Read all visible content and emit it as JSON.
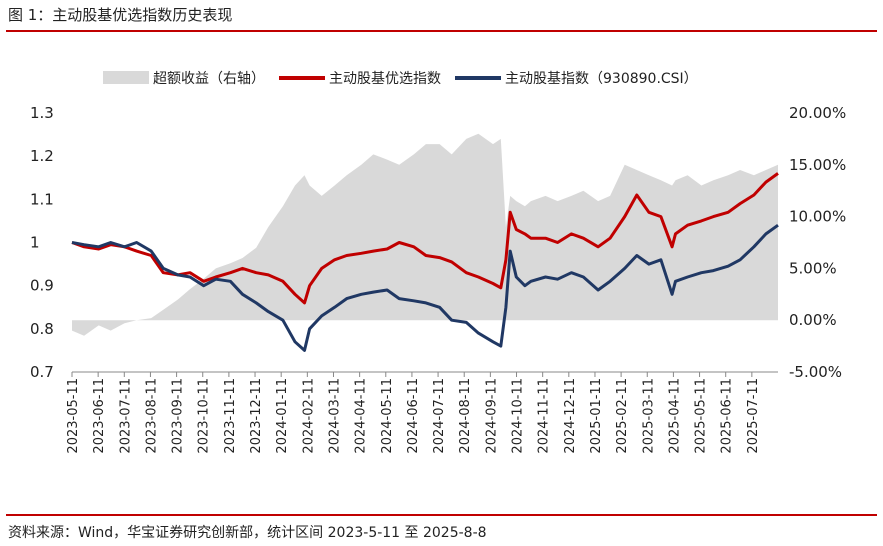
{
  "figure": {
    "title": "图 1：主动股基优选指数历史表现",
    "source": "资料来源：Wind，华宝证券研究创新部，统计区间 2023-5-11 至 2025-8-8"
  },
  "chart_data": {
    "type": "line",
    "title": "",
    "legend_position": "top",
    "grid": false,
    "x_tick_labels": [
      "2023-05-11",
      "2023-06-11",
      "2023-07-11",
      "2023-08-11",
      "2023-09-11",
      "2023-10-11",
      "2023-11-11",
      "2023-12-11",
      "2024-01-11",
      "2024-02-11",
      "2024-03-11",
      "2024-04-11",
      "2024-05-11",
      "2024-06-11",
      "2024-07-11",
      "2024-08-11",
      "2024-09-11",
      "2024-10-11",
      "2024-11-11",
      "2024-12-11",
      "2025-01-11",
      "2025-02-11",
      "2025-03-11",
      "2025-04-11",
      "2025-05-11",
      "2025-06-11",
      "2025-07-11"
    ],
    "y_left": {
      "ylim": [
        0.7,
        1.3
      ],
      "ticks": [
        0.7,
        0.8,
        0.9,
        1,
        1.1,
        1.2,
        1.3
      ],
      "tick_labels": [
        "0.7",
        "0.8",
        "0.9",
        "1",
        "1.1",
        "1.2",
        "1.3"
      ]
    },
    "y_right": {
      "ylim": [
        -0.05,
        0.2
      ],
      "ticks": [
        -0.05,
        0,
        0.05,
        0.1,
        0.15,
        0.2
      ],
      "tick_labels": [
        "-5.00%",
        "0.00%",
        "5.00%",
        "10.00%",
        "15.00%",
        "20.00%"
      ]
    },
    "x": [
      "2023-05-11",
      "2023-05-25",
      "2023-06-11",
      "2023-06-25",
      "2023-07-11",
      "2023-07-25",
      "2023-08-11",
      "2023-08-25",
      "2023-09-11",
      "2023-09-25",
      "2023-10-11",
      "2023-10-25",
      "2023-11-11",
      "2023-11-25",
      "2023-12-11",
      "2023-12-25",
      "2024-01-11",
      "2024-01-25",
      "2024-02-05",
      "2024-02-11",
      "2024-02-25",
      "2024-03-11",
      "2024-03-25",
      "2024-04-11",
      "2024-04-25",
      "2024-05-11",
      "2024-05-25",
      "2024-06-11",
      "2024-06-25",
      "2024-07-11",
      "2024-07-25",
      "2024-08-11",
      "2024-08-25",
      "2024-09-11",
      "2024-09-20",
      "2024-09-26",
      "2024-10-01",
      "2024-10-08",
      "2024-10-18",
      "2024-10-25",
      "2024-11-11",
      "2024-11-25",
      "2024-12-11",
      "2024-12-25",
      "2025-01-11",
      "2025-01-25",
      "2025-02-11",
      "2025-02-25",
      "2025-03-11",
      "2025-03-25",
      "2025-04-07",
      "2025-04-11",
      "2025-04-25",
      "2025-05-11",
      "2025-05-25",
      "2025-06-11",
      "2025-06-25",
      "2025-07-11",
      "2025-07-25",
      "2025-08-08"
    ],
    "series": [
      {
        "name": "超额收益（右轴）",
        "type": "area",
        "axis": "right",
        "color": "#d9d9d9",
        "values": [
          -0.01,
          -0.015,
          -0.005,
          -0.01,
          -0.003,
          0.0,
          0.002,
          0.01,
          0.02,
          0.03,
          0.04,
          0.05,
          0.055,
          0.06,
          0.07,
          0.09,
          0.11,
          0.13,
          0.14,
          0.13,
          0.12,
          0.13,
          0.14,
          0.15,
          0.16,
          0.155,
          0.15,
          0.16,
          0.17,
          0.17,
          0.16,
          0.175,
          0.18,
          0.17,
          0.175,
          0.09,
          0.12,
          0.115,
          0.11,
          0.115,
          0.12,
          0.115,
          0.12,
          0.125,
          0.115,
          0.12,
          0.15,
          0.145,
          0.14,
          0.135,
          0.13,
          0.135,
          0.14,
          0.13,
          0.135,
          0.14,
          0.145,
          0.14,
          0.145,
          0.15
        ]
      },
      {
        "name": "主动股基优选指数",
        "type": "line",
        "axis": "left",
        "color": "#c00000",
        "values": [
          1.0,
          0.99,
          0.985,
          0.995,
          0.99,
          0.98,
          0.97,
          0.93,
          0.925,
          0.93,
          0.91,
          0.92,
          0.93,
          0.94,
          0.93,
          0.925,
          0.91,
          0.88,
          0.86,
          0.9,
          0.94,
          0.96,
          0.97,
          0.975,
          0.98,
          0.985,
          1.0,
          0.99,
          0.97,
          0.965,
          0.955,
          0.93,
          0.92,
          0.905,
          0.895,
          0.96,
          1.07,
          1.03,
          1.02,
          1.01,
          1.01,
          1.0,
          1.02,
          1.01,
          0.99,
          1.01,
          1.06,
          1.11,
          1.07,
          1.06,
          0.99,
          1.02,
          1.04,
          1.05,
          1.06,
          1.07,
          1.09,
          1.11,
          1.14,
          1.16
        ]
      },
      {
        "name": "主动股基指数（930890.CSI）",
        "type": "line",
        "axis": "left",
        "color": "#203864",
        "values": [
          1.0,
          0.995,
          0.99,
          1.0,
          0.99,
          1.0,
          0.98,
          0.94,
          0.925,
          0.92,
          0.9,
          0.915,
          0.91,
          0.88,
          0.86,
          0.84,
          0.82,
          0.77,
          0.75,
          0.8,
          0.83,
          0.85,
          0.87,
          0.88,
          0.885,
          0.89,
          0.87,
          0.865,
          0.86,
          0.85,
          0.82,
          0.815,
          0.79,
          0.77,
          0.76,
          0.85,
          0.98,
          0.92,
          0.9,
          0.91,
          0.92,
          0.915,
          0.93,
          0.92,
          0.89,
          0.91,
          0.94,
          0.97,
          0.95,
          0.96,
          0.88,
          0.91,
          0.92,
          0.93,
          0.935,
          0.945,
          0.96,
          0.99,
          1.02,
          1.04
        ]
      }
    ]
  }
}
